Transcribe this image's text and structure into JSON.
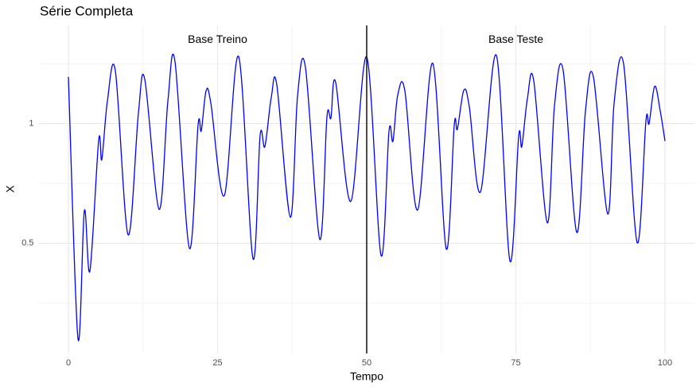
{
  "chart_data": {
    "type": "line",
    "title": "Série Completa",
    "x_label": "Tempo",
    "y_label": "X",
    "xlim": [
      -5,
      105
    ],
    "ylim": [
      0.04,
      1.41
    ],
    "xticks": [
      0,
      25,
      50,
      75,
      100
    ],
    "yticks": [
      0.5,
      1.0
    ],
    "x_minor_breaks": [
      12.5,
      37.5,
      62.5,
      87.5
    ],
    "y_minor_breaks": [
      0.25,
      0.75,
      1.25
    ],
    "grid": true,
    "vline": 50,
    "vline_color": "#000000",
    "annotations": [
      {
        "text": "Base Treino",
        "x": 25,
        "y": 1.35
      },
      {
        "text": "Base Teste",
        "x": 75,
        "y": 1.35
      }
    ],
    "series": [
      {
        "name": "X",
        "color": "#0000ff",
        "x": [
          0,
          1.6,
          2.67,
          3.6,
          5.07,
          5.6,
          6.53,
          7.87,
          10.0,
          11.73,
          12.8,
          15.2,
          16.67,
          17.87,
          20.27,
          21.73,
          22.27,
          23.07,
          23.87,
          26.13,
          28.53,
          30.93,
          32.13,
          32.93,
          34.0,
          34.93,
          37.2,
          38.4,
          39.73,
          42.13,
          43.33,
          44.0,
          44.8,
          47.33,
          50.0,
          52.4,
          53.73,
          54.4,
          55.2,
          56.4,
          58.53,
          61.07,
          63.33,
          64.67,
          65.2,
          66.27,
          67.2,
          69.07,
          71.73,
          74.0,
          75.47,
          76.0,
          76.93,
          78.0,
          80.27,
          81.47,
          82.93,
          85.2,
          86.67,
          88.0,
          90.4,
          91.47,
          93.07,
          95.33,
          96.8,
          97.33,
          98.27,
          99.2,
          100
        ],
        "values": [
          1.195,
          0.103,
          0.636,
          0.384,
          0.93,
          0.85,
          1.093,
          1.22,
          0.536,
          1.043,
          1.185,
          0.642,
          1.093,
          1.258,
          0.48,
          0.993,
          0.97,
          1.136,
          1.086,
          0.699,
          1.28,
          0.437,
          0.95,
          0.904,
          1.109,
          1.162,
          0.609,
          1.113,
          1.235,
          0.517,
          1.026,
          1.023,
          1.172,
          0.675,
          1.278,
          0.45,
          0.967,
          0.927,
          1.119,
          1.136,
          0.639,
          1.252,
          0.477,
          0.993,
          0.977,
          1.139,
          1.07,
          0.715,
          1.285,
          0.427,
          0.947,
          0.904,
          1.103,
          1.179,
          0.586,
          1.073,
          1.222,
          0.546,
          1.053,
          1.195,
          0.623,
          1.086,
          1.248,
          0.503,
          1.01,
          1.0,
          1.156,
          1.053,
          0.927
        ]
      }
    ]
  }
}
